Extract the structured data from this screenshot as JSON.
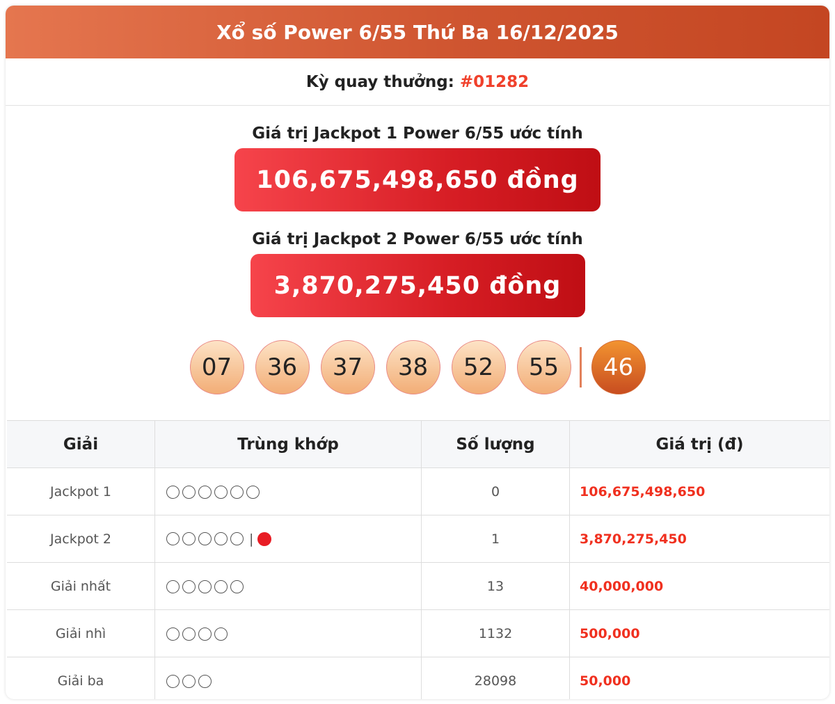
{
  "header": {
    "title": "Xổ số Power 6/55 Thứ Ba 16/12/2025"
  },
  "draw": {
    "label": "Kỳ quay thưởng:",
    "id": "#01282"
  },
  "jackpot1": {
    "label": "Giá trị Jackpot 1 Power 6/55 ước tính",
    "value": "106,675,498,650 đồng"
  },
  "jackpot2": {
    "label": "Giá trị Jackpot 2 Power 6/55 ước tính",
    "value": "3,870,275,450 đồng"
  },
  "numbers": [
    "07",
    "36",
    "37",
    "38",
    "52",
    "55"
  ],
  "special_number": "46",
  "table": {
    "headers": [
      "Giải",
      "Trùng khớp",
      "Số lượng",
      "Giá trị (đ)"
    ],
    "rows": [
      {
        "prize": "Jackpot 1",
        "matches": 6,
        "special": false,
        "count": "0",
        "value": "106,675,498,650"
      },
      {
        "prize": "Jackpot 2",
        "matches": 5,
        "special": true,
        "special_sep": "|",
        "count": "1",
        "value": "3,870,275,450"
      },
      {
        "prize": "Giải nhất",
        "matches": 5,
        "special": false,
        "count": "13",
        "value": "40,000,000"
      },
      {
        "prize": "Giải nhì",
        "matches": 4,
        "special": false,
        "count": "1132",
        "value": "500,000"
      },
      {
        "prize": "Giải ba",
        "matches": 3,
        "special": false,
        "count": "28098",
        "value": "50,000"
      }
    ]
  }
}
